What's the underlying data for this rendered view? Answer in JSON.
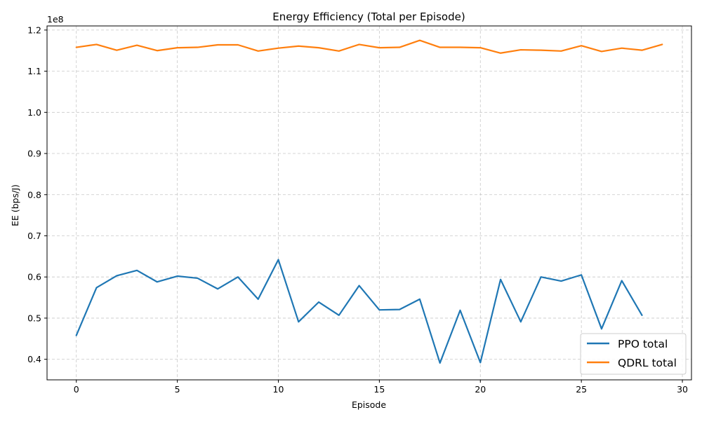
{
  "chart_data": {
    "type": "line",
    "title": "Energy Efficiency (Total per Episode)",
    "xlabel": "Episode",
    "ylabel": "EE (bps/J)",
    "y_offset_label": "1e8",
    "y_scale_factor": 100000000,
    "xlim": [
      -1.45,
      30.45
    ],
    "ylim": [
      0.35,
      1.21
    ],
    "x_ticks": [
      0,
      5,
      10,
      15,
      20,
      25,
      30
    ],
    "y_ticks": [
      0.4,
      0.5,
      0.6,
      0.7,
      0.8,
      0.9,
      1.0,
      1.1,
      1.2
    ],
    "y_tick_labels": [
      "0.4",
      "0.5",
      "0.6",
      "0.7",
      "0.8",
      "0.9",
      "1.0",
      "1.1",
      "1.2"
    ],
    "grid": true,
    "legend_position": "lower right",
    "series": [
      {
        "name": "PPO total",
        "color": "#1f77b4",
        "x": [
          0,
          1,
          2,
          3,
          4,
          5,
          6,
          7,
          8,
          9,
          10,
          11,
          12,
          13,
          14,
          15,
          16,
          17,
          18,
          19,
          20,
          21,
          22,
          23,
          24,
          25,
          26,
          27,
          28
        ],
        "values": [
          0.458,
          0.574,
          0.603,
          0.616,
          0.588,
          0.602,
          0.597,
          0.571,
          0.6,
          0.546,
          0.642,
          0.491,
          0.539,
          0.507,
          0.579,
          0.52,
          0.521,
          0.546,
          0.391,
          0.519,
          0.392,
          0.594,
          0.491,
          0.6,
          0.59,
          0.605,
          0.474,
          0.591,
          0.507
        ]
      },
      {
        "name": "QDRL total",
        "color": "#ff7f0e",
        "x": [
          0,
          1,
          2,
          3,
          4,
          5,
          6,
          7,
          8,
          9,
          10,
          11,
          12,
          13,
          14,
          15,
          16,
          17,
          18,
          19,
          20,
          21,
          22,
          23,
          24,
          25,
          26,
          27,
          28,
          29
        ],
        "values": [
          1.158,
          1.165,
          1.151,
          1.163,
          1.15,
          1.157,
          1.158,
          1.164,
          1.164,
          1.149,
          1.156,
          1.161,
          1.157,
          1.149,
          1.165,
          1.157,
          1.158,
          1.175,
          1.158,
          1.158,
          1.157,
          1.144,
          1.152,
          1.151,
          1.149,
          1.162,
          1.148,
          1.156,
          1.151,
          1.165
        ]
      }
    ]
  }
}
